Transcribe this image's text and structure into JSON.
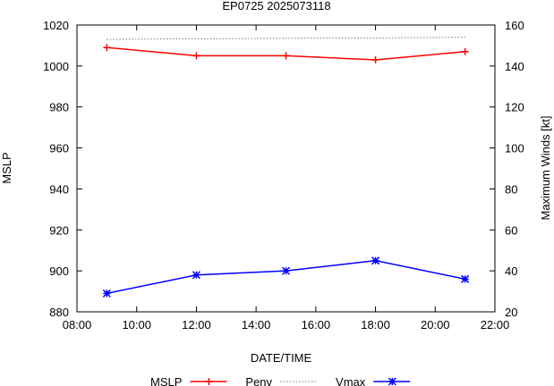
{
  "chart_data": {
    "type": "line",
    "title": "EP0725 2025073118",
    "xlabel": "DATE/TIME",
    "ylabel_left": "MSLP",
    "ylabel_right": "Maximum Winds [kt]",
    "x_ticks": [
      "08:00",
      "10:00",
      "12:00",
      "14:00",
      "16:00",
      "18:00",
      "20:00",
      "22:00"
    ],
    "x_range_hours": [
      8,
      22
    ],
    "y_left_range": [
      880,
      1020
    ],
    "y_left_ticks": [
      880,
      900,
      920,
      940,
      960,
      980,
      1000,
      1020
    ],
    "y_right_range": [
      20,
      160
    ],
    "y_right_ticks": [
      20,
      40,
      60,
      80,
      100,
      120,
      140,
      160
    ],
    "x_hours": [
      9,
      12,
      15,
      18,
      21
    ],
    "series": [
      {
        "name": "MSLP",
        "axis": "left",
        "color": "#ff0000",
        "marker": "plus",
        "values": [
          1009,
          1005,
          1005,
          1003,
          1007
        ]
      },
      {
        "name": "Penv",
        "axis": "left",
        "color": "#555555",
        "marker": "none",
        "dashed": true,
        "values": [
          1013,
          1013,
          1014,
          1014,
          1014
        ]
      },
      {
        "name": "Vmax",
        "axis": "right",
        "color": "#0000ff",
        "marker": "star",
        "values": [
          29,
          38,
          40,
          45,
          36
        ]
      }
    ]
  }
}
